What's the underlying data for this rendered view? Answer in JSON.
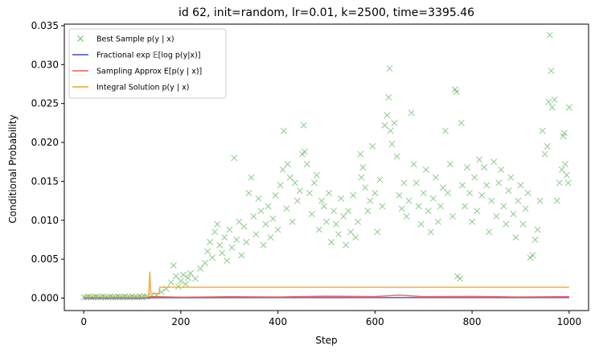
{
  "chart_data": {
    "type": "scatter",
    "title": "id 62, init=random, lr=0.01, k=2500, time=3395.46",
    "xlabel": "Step",
    "ylabel": "Conditional Probability",
    "xlim": [
      -40,
      1040
    ],
    "ylim": [
      -0.0016,
      0.0352
    ],
    "xticks": [
      0,
      200,
      400,
      600,
      800,
      1000
    ],
    "xtick_labels": [
      "0",
      "200",
      "400",
      "600",
      "800",
      "1000"
    ],
    "yticks": [
      0.0,
      0.005,
      0.01,
      0.015,
      0.02,
      0.025,
      0.03,
      0.035
    ],
    "ytick_labels": [
      "0.000",
      "0.005",
      "0.010",
      "0.015",
      "0.020",
      "0.025",
      "0.030",
      "0.035"
    ],
    "grid": false,
    "legend_position": "top-left",
    "series": [
      {
        "name": "Best Sample p(y | x)",
        "kind": "scatter",
        "marker": "x",
        "color": "#2ca02c",
        "points": [
          [
            0,
            0.0001
          ],
          [
            5,
            0.0001
          ],
          [
            10,
            0.0002
          ],
          [
            15,
            0.0001
          ],
          [
            20,
            0.0001
          ],
          [
            25,
            0.0002
          ],
          [
            30,
            0.0001
          ],
          [
            35,
            0.0001
          ],
          [
            40,
            0.0002
          ],
          [
            45,
            0.0001
          ],
          [
            50,
            0.0001
          ],
          [
            55,
            0.0002
          ],
          [
            60,
            0.0001
          ],
          [
            65,
            0.0001
          ],
          [
            70,
            0.0002
          ],
          [
            75,
            0.0001
          ],
          [
            80,
            0.0001
          ],
          [
            85,
            0.0002
          ],
          [
            90,
            0.0001
          ],
          [
            95,
            0.0001
          ],
          [
            100,
            0.0002
          ],
          [
            105,
            0.0001
          ],
          [
            110,
            0.0001
          ],
          [
            115,
            0.0002
          ],
          [
            120,
            0.0001
          ],
          [
            125,
            0.0002
          ],
          [
            130,
            0.0002
          ],
          [
            140,
            0.0003
          ],
          [
            150,
            0.0004
          ],
          [
            160,
            0.0008
          ],
          [
            170,
            0.0012
          ],
          [
            180,
            0.002
          ],
          [
            185,
            0.0042
          ],
          [
            190,
            0.0028
          ],
          [
            195,
            0.0015
          ],
          [
            200,
            0.0022
          ],
          [
            205,
            0.003
          ],
          [
            210,
            0.0018
          ],
          [
            215,
            0.0026
          ],
          [
            220,
            0.0032
          ],
          [
            230,
            0.0025
          ],
          [
            240,
            0.0038
          ],
          [
            250,
            0.0045
          ],
          [
            255,
            0.006
          ],
          [
            260,
            0.0072
          ],
          [
            265,
            0.0052
          ],
          [
            270,
            0.0085
          ],
          [
            275,
            0.0095
          ],
          [
            280,
            0.0068
          ],
          [
            285,
            0.0058
          ],
          [
            290,
            0.0078
          ],
          [
            295,
            0.0048
          ],
          [
            300,
            0.0088
          ],
          [
            305,
            0.0065
          ],
          [
            310,
            0.018
          ],
          [
            315,
            0.0075
          ],
          [
            320,
            0.0098
          ],
          [
            325,
            0.0055
          ],
          [
            330,
            0.0092
          ],
          [
            335,
            0.0072
          ],
          [
            340,
            0.0135
          ],
          [
            345,
            0.0155
          ],
          [
            350,
            0.0105
          ],
          [
            355,
            0.0082
          ],
          [
            360,
            0.0128
          ],
          [
            365,
            0.0112
          ],
          [
            370,
            0.0068
          ],
          [
            375,
            0.0095
          ],
          [
            380,
            0.0118
          ],
          [
            385,
            0.0078
          ],
          [
            390,
            0.0102
          ],
          [
            395,
            0.0132
          ],
          [
            400,
            0.0088
          ],
          [
            405,
            0.0145
          ],
          [
            410,
            0.0165
          ],
          [
            412,
            0.0215
          ],
          [
            418,
            0.0115
          ],
          [
            420,
            0.0172
          ],
          [
            425,
            0.0155
          ],
          [
            430,
            0.0098
          ],
          [
            435,
            0.0148
          ],
          [
            440,
            0.0125
          ],
          [
            445,
            0.0138
          ],
          [
            450,
            0.0185
          ],
          [
            453,
            0.0222
          ],
          [
            455,
            0.0188
          ],
          [
            460,
            0.0172
          ],
          [
            465,
            0.0135
          ],
          [
            470,
            0.0108
          ],
          [
            475,
            0.0148
          ],
          [
            480,
            0.0158
          ],
          [
            485,
            0.0088
          ],
          [
            490,
            0.0125
          ],
          [
            495,
            0.0118
          ],
          [
            500,
            0.0098
          ],
          [
            505,
            0.0135
          ],
          [
            510,
            0.0072
          ],
          [
            515,
            0.0112
          ],
          [
            520,
            0.0095
          ],
          [
            525,
            0.0082
          ],
          [
            530,
            0.0128
          ],
          [
            535,
            0.0105
          ],
          [
            540,
            0.0068
          ],
          [
            545,
            0.0112
          ],
          [
            550,
            0.0085
          ],
          [
            555,
            0.0132
          ],
          [
            560,
            0.0078
          ],
          [
            565,
            0.0098
          ],
          [
            570,
            0.0185
          ],
          [
            572,
            0.0155
          ],
          [
            575,
            0.0168
          ],
          [
            580,
            0.0142
          ],
          [
            585,
            0.0112
          ],
          [
            590,
            0.0125
          ],
          [
            595,
            0.0195
          ],
          [
            600,
            0.0135
          ],
          [
            605,
            0.0085
          ],
          [
            610,
            0.0152
          ],
          [
            615,
            0.0118
          ],
          [
            620,
            0.0222
          ],
          [
            625,
            0.0235
          ],
          [
            628,
            0.0258
          ],
          [
            630,
            0.0295
          ],
          [
            632,
            0.0215
          ],
          [
            635,
            0.0198
          ],
          [
            640,
            0.0225
          ],
          [
            645,
            0.0182
          ],
          [
            650,
            0.0132
          ],
          [
            655,
            0.0115
          ],
          [
            660,
            0.0148
          ],
          [
            665,
            0.0105
          ],
          [
            670,
            0.0125
          ],
          [
            675,
            0.0238
          ],
          [
            680,
            0.0172
          ],
          [
            685,
            0.0148
          ],
          [
            690,
            0.0118
          ],
          [
            695,
            0.0095
          ],
          [
            700,
            0.0135
          ],
          [
            705,
            0.0165
          ],
          [
            710,
            0.0112
          ],
          [
            715,
            0.0085
          ],
          [
            720,
            0.0128
          ],
          [
            725,
            0.0155
          ],
          [
            730,
            0.0098
          ],
          [
            735,
            0.0118
          ],
          [
            740,
            0.0142
          ],
          [
            745,
            0.0215
          ],
          [
            750,
            0.0135
          ],
          [
            755,
            0.0172
          ],
          [
            760,
            0.0105
          ],
          [
            765,
            0.0268
          ],
          [
            768,
            0.0265
          ],
          [
            770,
            0.0028
          ],
          [
            775,
            0.0025
          ],
          [
            778,
            0.0225
          ],
          [
            780,
            0.0145
          ],
          [
            785,
            0.0118
          ],
          [
            790,
            0.0168
          ],
          [
            795,
            0.0135
          ],
          [
            800,
            0.0098
          ],
          [
            805,
            0.0155
          ],
          [
            810,
            0.0112
          ],
          [
            815,
            0.0178
          ],
          [
            820,
            0.0132
          ],
          [
            825,
            0.0168
          ],
          [
            830,
            0.0145
          ],
          [
            835,
            0.0085
          ],
          [
            840,
            0.0125
          ],
          [
            845,
            0.0175
          ],
          [
            850,
            0.0105
          ],
          [
            855,
            0.0148
          ],
          [
            860,
            0.0165
          ],
          [
            865,
            0.0118
          ],
          [
            870,
            0.0095
          ],
          [
            875,
            0.0138
          ],
          [
            880,
            0.0155
          ],
          [
            885,
            0.0108
          ],
          [
            890,
            0.0078
          ],
          [
            895,
            0.0125
          ],
          [
            900,
            0.0145
          ],
          [
            905,
            0.0095
          ],
          [
            910,
            0.0115
          ],
          [
            915,
            0.0135
          ],
          [
            920,
            0.0052
          ],
          [
            925,
            0.0055
          ],
          [
            930,
            0.0075
          ],
          [
            935,
            0.0088
          ],
          [
            940,
            0.0125
          ],
          [
            945,
            0.0215
          ],
          [
            950,
            0.0185
          ],
          [
            955,
            0.0195
          ],
          [
            958,
            0.0252
          ],
          [
            960,
            0.0338
          ],
          [
            963,
            0.0292
          ],
          [
            965,
            0.0245
          ],
          [
            970,
            0.0255
          ],
          [
            975,
            0.0125
          ],
          [
            980,
            0.0148
          ],
          [
            985,
            0.0165
          ],
          [
            988,
            0.0208
          ],
          [
            990,
            0.0212
          ],
          [
            992,
            0.0172
          ],
          [
            995,
            0.0158
          ],
          [
            998,
            0.0148
          ],
          [
            1000,
            0.0245
          ]
        ]
      },
      {
        "name": "Fractional exp 𝔼[log p(y|x)]",
        "kind": "line",
        "color": "#3f4bc5",
        "points": [
          [
            0,
            0.0
          ],
          [
            130,
            0.0
          ],
          [
            140,
            5e-05
          ],
          [
            200,
            5e-05
          ],
          [
            400,
            6e-05
          ],
          [
            600,
            6e-05
          ],
          [
            800,
            6e-05
          ],
          [
            1000,
            6e-05
          ]
        ]
      },
      {
        "name": "Sampling Approx E[p(y | x)]",
        "kind": "line",
        "color": "#f05a5a",
        "points": [
          [
            0,
            0.0001
          ],
          [
            130,
            0.0001
          ],
          [
            140,
            0.0002
          ],
          [
            200,
            0.00012
          ],
          [
            300,
            0.00018
          ],
          [
            400,
            0.00015
          ],
          [
            500,
            0.00025
          ],
          [
            600,
            0.0002
          ],
          [
            650,
            0.0004
          ],
          [
            700,
            0.00018
          ],
          [
            800,
            0.00022
          ],
          [
            900,
            0.00015
          ],
          [
            1000,
            0.0002
          ]
        ]
      },
      {
        "name": "Integral Solution p(y | x)",
        "kind": "line",
        "color": "#f5a623",
        "points": [
          [
            0,
            0.0001
          ],
          [
            130,
            0.0001
          ],
          [
            134,
            0.0002
          ],
          [
            136,
            0.0034
          ],
          [
            138,
            0.0008
          ],
          [
            140,
            0.0006
          ],
          [
            155,
            0.0006
          ],
          [
            157,
            0.0014
          ],
          [
            240,
            0.0014
          ],
          [
            242,
            0.0014
          ],
          [
            1000,
            0.0014
          ]
        ]
      }
    ]
  }
}
